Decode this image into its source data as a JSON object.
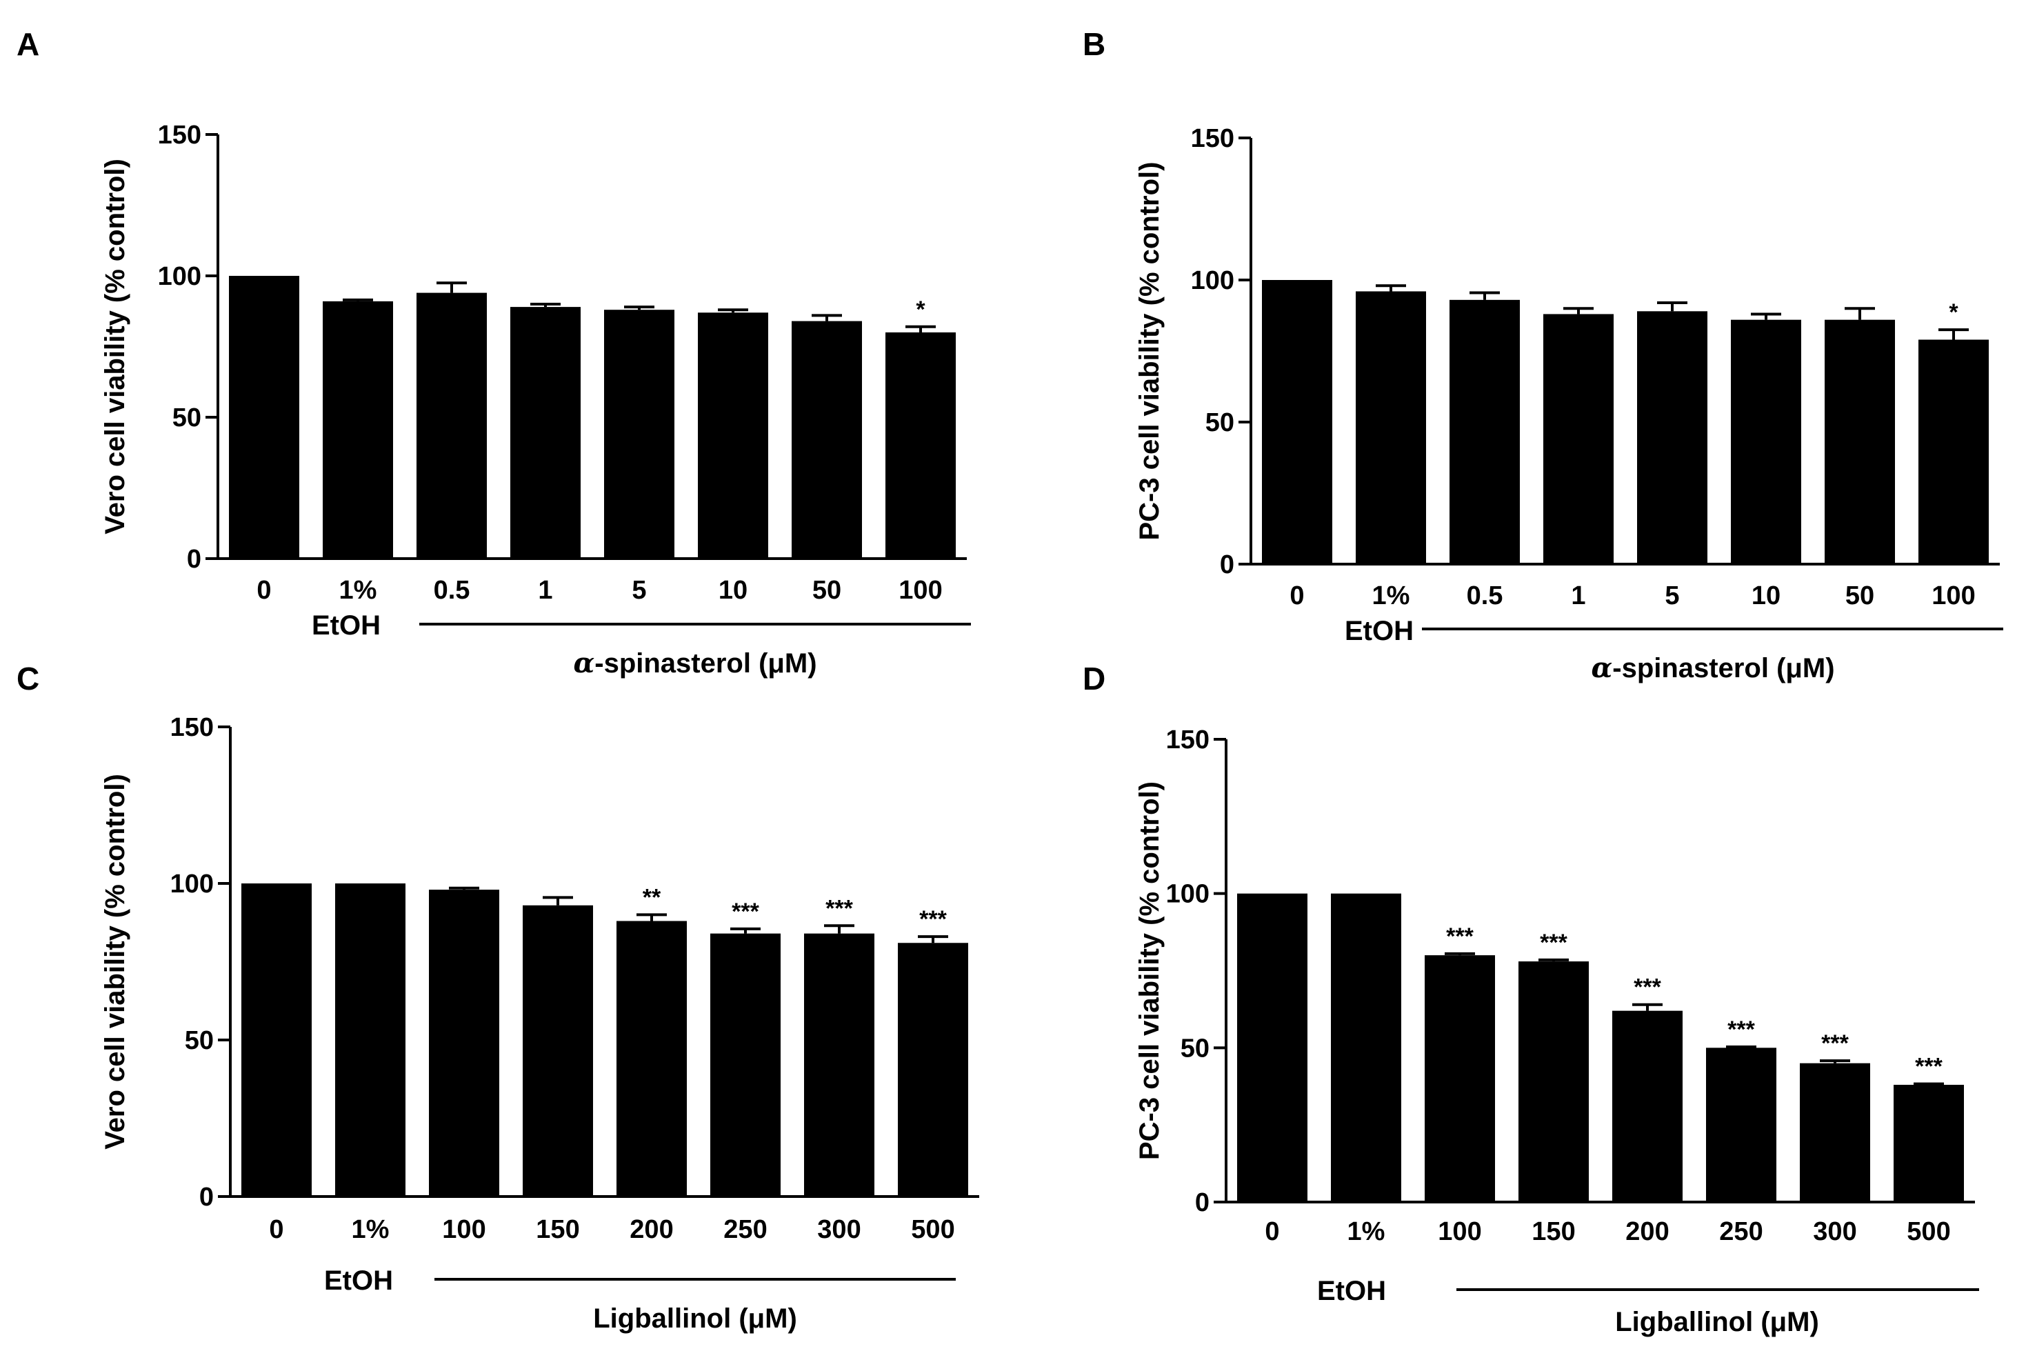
{
  "colors": {
    "bar": "#000000",
    "axis": "#000000",
    "background": "#ffffff"
  },
  "chart_data": [
    {
      "panel": "A",
      "type": "bar",
      "ylabel": "Vero cell viability (% control)",
      "ylim": [
        0,
        150
      ],
      "yticks": [
        0,
        50,
        100,
        150
      ],
      "categories": [
        "0",
        "1%",
        "0.5",
        "1",
        "5",
        "10",
        "50",
        "100"
      ],
      "values": [
        100,
        91,
        94,
        89,
        88,
        87,
        84,
        80
      ],
      "errors": [
        0,
        0.5,
        3.5,
        1,
        1,
        1,
        2,
        2
      ],
      "significance": [
        "",
        "",
        "",
        "",
        "",
        "",
        "",
        "*"
      ],
      "vehicle_label": "EtOH",
      "compound_prefix": "α",
      "compound_label": "-spinasterol (μM)"
    },
    {
      "panel": "B",
      "type": "bar",
      "ylabel": "PC-3 cell viability (% control)",
      "ylim": [
        0,
        150
      ],
      "yticks": [
        0,
        50,
        100,
        150
      ],
      "categories": [
        "0",
        "1%",
        "0.5",
        "1",
        "5",
        "10",
        "50",
        "100"
      ],
      "values": [
        100,
        96,
        93,
        88,
        89,
        86,
        86,
        79
      ],
      "errors": [
        0,
        2,
        2.5,
        2,
        3,
        2,
        4,
        3.5
      ],
      "significance": [
        "",
        "",
        "",
        "",
        "",
        "",
        "",
        "*"
      ],
      "vehicle_label": "EtOH",
      "compound_prefix": "α",
      "compound_label": "-spinasterol (μM)"
    },
    {
      "panel": "C",
      "type": "bar",
      "ylabel": "Vero cell viability (% control)",
      "ylim": [
        0,
        150
      ],
      "yticks": [
        0,
        50,
        100,
        150
      ],
      "categories": [
        "0",
        "1%",
        "100",
        "150",
        "200",
        "250",
        "300",
        "500"
      ],
      "values": [
        100,
        100,
        98,
        93,
        88,
        84,
        84,
        81
      ],
      "errors": [
        0,
        0,
        0.5,
        2.5,
        2,
        1.5,
        2.5,
        2
      ],
      "significance": [
        "",
        "",
        "",
        "",
        "**",
        "***",
        "***",
        "***"
      ],
      "vehicle_label": "EtOH",
      "compound_prefix": "",
      "compound_label": "Ligballinol (μM)"
    },
    {
      "panel": "D",
      "type": "bar",
      "ylabel": "PC-3 cell viability (% control)",
      "ylim": [
        0,
        150
      ],
      "yticks": [
        0,
        50,
        100,
        150
      ],
      "categories": [
        "0",
        "1%",
        "100",
        "150",
        "200",
        "250",
        "300",
        "500"
      ],
      "values": [
        100,
        100,
        80,
        78,
        62,
        50,
        45,
        38
      ],
      "errors": [
        0,
        0,
        0.5,
        0.5,
        2,
        0.3,
        0.8,
        0.3
      ],
      "significance": [
        "",
        "",
        "***",
        "***",
        "***",
        "***",
        "***",
        "***"
      ],
      "vehicle_label": "EtOH",
      "compound_prefix": "",
      "compound_label": "Ligballinol (μM)"
    }
  ]
}
